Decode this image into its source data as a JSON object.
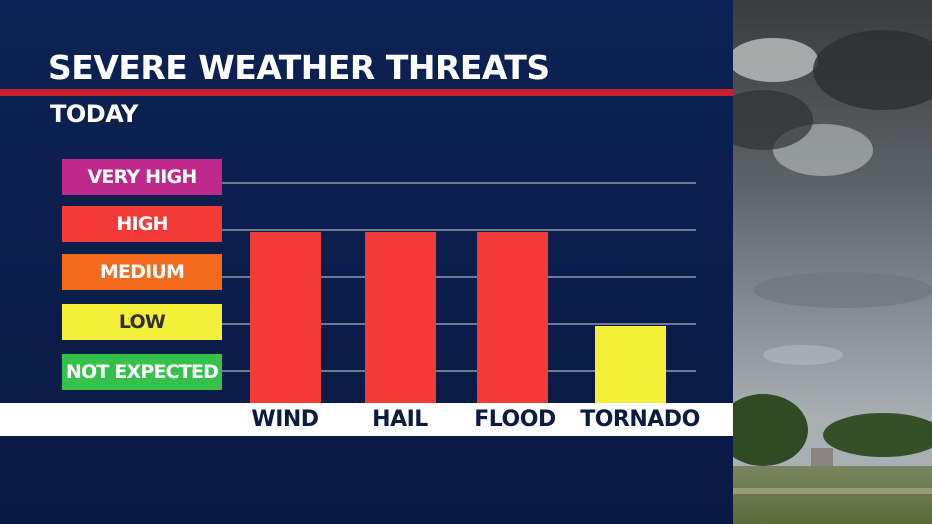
{
  "title": "SEVERE WEATHER THREATS",
  "subtitle": "TODAY",
  "colors": {
    "very_high": "#bd2a8c",
    "high": "#f23a36",
    "medium": "#f26a1c",
    "low": "#f4f03a",
    "not_expected": "#36c24a",
    "accent_line": "#c81e2e"
  },
  "levels": [
    "NOT EXPECTED",
    "LOW",
    "MEDIUM",
    "HIGH",
    "VERY HIGH"
  ],
  "chart_data": {
    "type": "bar",
    "categories": [
      "WIND",
      "HAIL",
      "FLOOD",
      "TORNADO"
    ],
    "values": [
      3,
      3,
      3,
      1
    ],
    "value_scale": [
      "NOT EXPECTED",
      "LOW",
      "MEDIUM",
      "HIGH",
      "VERY HIGH"
    ],
    "ylim": [
      0,
      4
    ],
    "bar_colors": [
      "#f23a36",
      "#f23a36",
      "#f23a36",
      "#f4f03a"
    ],
    "grid": true,
    "legend": "left"
  }
}
